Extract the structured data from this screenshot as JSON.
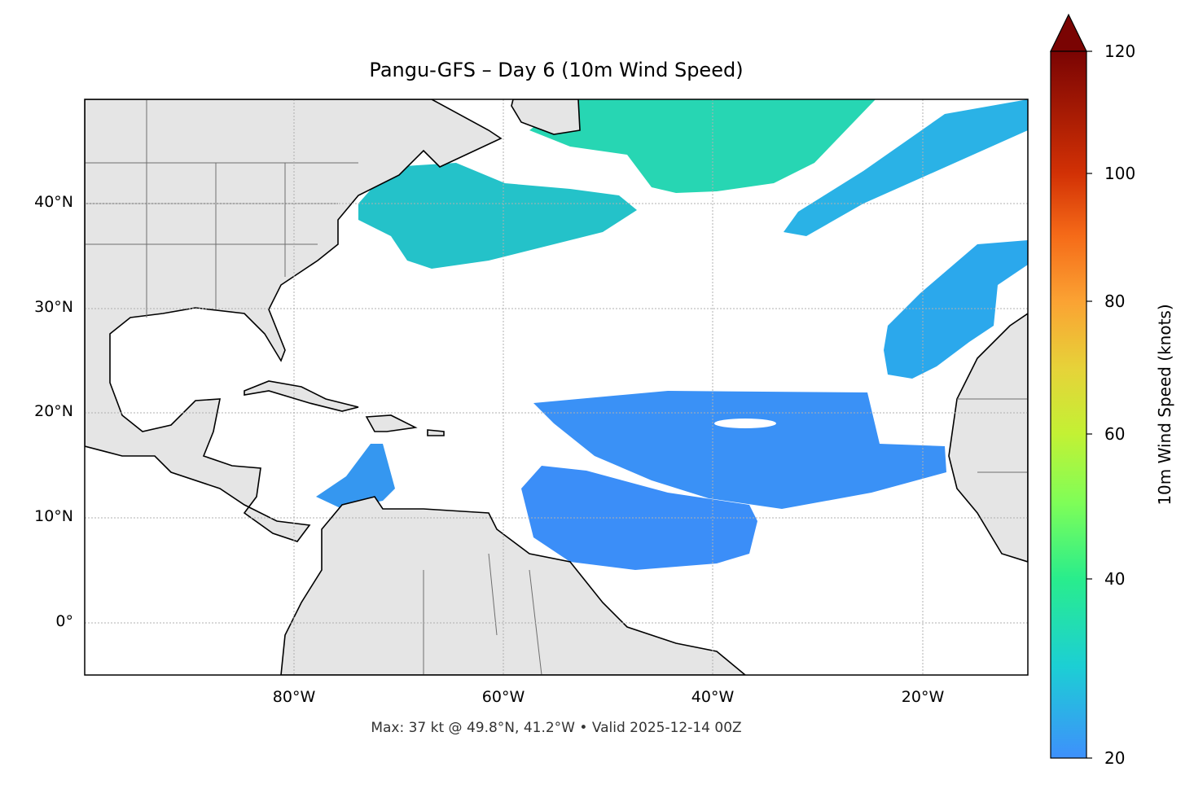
{
  "chart_data": {
    "type": "map",
    "title": "Pangu-GFS – Day 6 (10m Wind Speed)",
    "annotation": "Max: 37 kt @ 49.8°N, 41.2°W • Valid 2025-12-14 00Z",
    "extent": {
      "lon": [
        -100,
        -10
      ],
      "lat": [
        -5,
        50
      ]
    },
    "grid": true,
    "lat_ticks": [
      {
        "value": 40,
        "label": "40°N"
      },
      {
        "value": 30,
        "label": "30°N"
      },
      {
        "value": 20,
        "label": "20°N"
      },
      {
        "value": 10,
        "label": "10°N"
      },
      {
        "value": 0,
        "label": "0°"
      }
    ],
    "lon_ticks": [
      {
        "value": -80,
        "label": "80°W"
      },
      {
        "value": -60,
        "label": "60°W"
      },
      {
        "value": -40,
        "label": "40°W"
      },
      {
        "value": -20,
        "label": "20°W"
      }
    ],
    "colorbar": {
      "label": "10m Wind Speed (knots)",
      "range": [
        20,
        120
      ],
      "extend": "max",
      "ticks": [
        {
          "value": 120,
          "label": "120"
        },
        {
          "value": 100,
          "label": "100"
        },
        {
          "value": 80,
          "label": "80"
        },
        {
          "value": 60,
          "label": "60"
        },
        {
          "value": 40,
          "label": "40"
        },
        {
          "value": 20,
          "label": "20"
        }
      ]
    },
    "colors": {
      "land": "#e5e5e5",
      "coast": "#000000",
      "borders": "#6e6e6e",
      "grid": "#b0b0b0"
    }
  }
}
